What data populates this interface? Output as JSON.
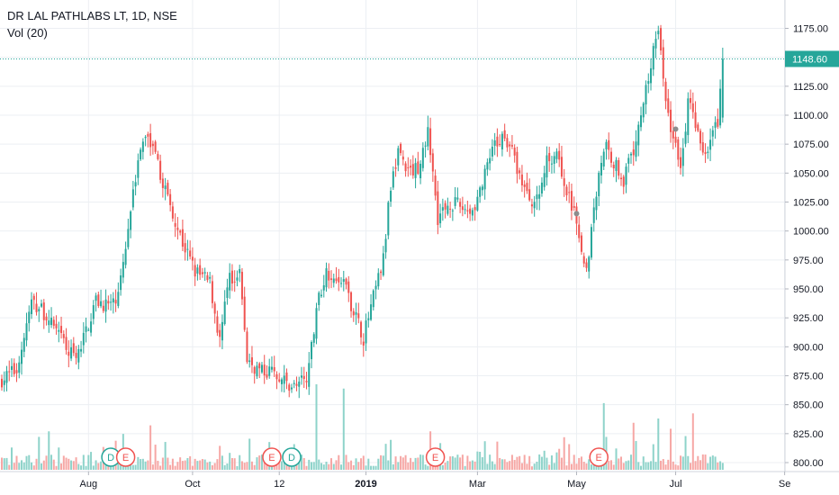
{
  "header": {
    "title": "DR LAL PATHLABS LT, 1D, NSE",
    "volume_label": "Vol (20)"
  },
  "colors": {
    "up": "#26a69a",
    "down": "#ef5350",
    "vol_up": "#8ed3ca",
    "vol_down": "#f6a7a5",
    "grid": "#eceff3",
    "text": "#131722",
    "price_line": "#26a69a",
    "price_label_bg": "#26a69a"
  },
  "chart_data": {
    "type": "candlestick",
    "symbol": "DR LAL PATHLABS LT",
    "interval": "1D",
    "exchange": "NSE",
    "ylim": [
      795,
      1185
    ],
    "y_ticks": [
      800,
      825,
      850,
      875,
      900,
      925,
      950,
      975,
      1000,
      1025,
      1050,
      1075,
      1100,
      1125,
      1150,
      1175
    ],
    "y_tick_labels": [
      "800.00",
      "825.00",
      "850.00",
      "875.00",
      "900.00",
      "925.00",
      "950.00",
      "975.00",
      "1000.00",
      "1025.00",
      "1050.00",
      "1075.00",
      "1100.00",
      "1125.00",
      "1150.00",
      "1175.00"
    ],
    "x_tick_labels": [
      "Aug",
      "Oct",
      "12",
      "2019",
      "Mar",
      "May",
      "Jul",
      "Se"
    ],
    "x_tick_days": [
      35,
      77,
      112,
      147,
      192,
      232,
      272,
      316
    ],
    "last_price": 1148.6,
    "last_price_label": "1148.60",
    "close_anchors": [
      {
        "d": 0,
        "p": 872
      },
      {
        "d": 6,
        "p": 880
      },
      {
        "d": 12,
        "p": 938
      },
      {
        "d": 17,
        "p": 930
      },
      {
        "d": 24,
        "p": 905
      },
      {
        "d": 30,
        "p": 888
      },
      {
        "d": 38,
        "p": 940
      },
      {
        "d": 45,
        "p": 935
      },
      {
        "d": 49,
        "p": 968
      },
      {
        "d": 53,
        "p": 1040
      },
      {
        "d": 58,
        "p": 1085
      },
      {
        "d": 62,
        "p": 1062
      },
      {
        "d": 67,
        "p": 1030
      },
      {
        "d": 73,
        "p": 990
      },
      {
        "d": 78,
        "p": 965
      },
      {
        "d": 84,
        "p": 955
      },
      {
        "d": 88,
        "p": 905
      },
      {
        "d": 92,
        "p": 960
      },
      {
        "d": 96,
        "p": 965
      },
      {
        "d": 99,
        "p": 888
      },
      {
        "d": 105,
        "p": 878
      },
      {
        "d": 110,
        "p": 880
      },
      {
        "d": 115,
        "p": 868
      },
      {
        "d": 120,
        "p": 865
      },
      {
        "d": 124,
        "p": 880
      },
      {
        "d": 127,
        "p": 935
      },
      {
        "d": 131,
        "p": 965
      },
      {
        "d": 137,
        "p": 960
      },
      {
        "d": 142,
        "p": 932
      },
      {
        "d": 146,
        "p": 908
      },
      {
        "d": 150,
        "p": 942
      },
      {
        "d": 154,
        "p": 975
      },
      {
        "d": 157,
        "p": 1040
      },
      {
        "d": 160,
        "p": 1070
      },
      {
        "d": 164,
        "p": 1050
      },
      {
        "d": 168,
        "p": 1055
      },
      {
        "d": 172,
        "p": 1085
      },
      {
        "d": 176,
        "p": 1012
      },
      {
        "d": 181,
        "p": 1025
      },
      {
        "d": 186,
        "p": 1020
      },
      {
        "d": 190,
        "p": 1018
      },
      {
        "d": 194,
        "p": 1040
      },
      {
        "d": 198,
        "p": 1068
      },
      {
        "d": 203,
        "p": 1085
      },
      {
        "d": 208,
        "p": 1055
      },
      {
        "d": 212,
        "p": 1030
      },
      {
        "d": 216,
        "p": 1025
      },
      {
        "d": 220,
        "p": 1060
      },
      {
        "d": 224,
        "p": 1070
      },
      {
        "d": 227,
        "p": 1040
      },
      {
        "d": 230,
        "p": 1020
      },
      {
        "d": 233,
        "p": 1000
      },
      {
        "d": 236,
        "p": 965
      },
      {
        "d": 239,
        "p": 1020
      },
      {
        "d": 243,
        "p": 1075
      },
      {
        "d": 247,
        "p": 1060
      },
      {
        "d": 251,
        "p": 1045
      },
      {
        "d": 255,
        "p": 1070
      },
      {
        "d": 259,
        "p": 1110
      },
      {
        "d": 262,
        "p": 1145
      },
      {
        "d": 265,
        "p": 1170
      },
      {
        "d": 268,
        "p": 1110
      },
      {
        "d": 271,
        "p": 1080
      },
      {
        "d": 274,
        "p": 1055
      },
      {
        "d": 277,
        "p": 1110
      },
      {
        "d": 280,
        "p": 1095
      },
      {
        "d": 283,
        "p": 1065
      },
      {
        "d": 286,
        "p": 1080
      },
      {
        "d": 289,
        "p": 1095
      },
      {
        "d": 291,
        "p": 1148.6
      }
    ],
    "volume_spikes": [
      {
        "d": 19,
        "v": 0.45
      },
      {
        "d": 49,
        "v": 0.42
      },
      {
        "d": 60,
        "v": 0.52
      },
      {
        "d": 88,
        "v": 0.28
      },
      {
        "d": 118,
        "v": 0.3
      },
      {
        "d": 127,
        "v": 1.0
      },
      {
        "d": 138,
        "v": 0.95
      },
      {
        "d": 157,
        "v": 0.35
      },
      {
        "d": 173,
        "v": 0.45
      },
      {
        "d": 200,
        "v": 0.33
      },
      {
        "d": 229,
        "v": 0.3
      },
      {
        "d": 243,
        "v": 0.78
      },
      {
        "d": 255,
        "v": 0.55
      },
      {
        "d": 265,
        "v": 0.6
      },
      {
        "d": 270,
        "v": 0.48
      },
      {
        "d": 279,
        "v": 0.66
      },
      {
        "d": 291,
        "v": 0.08
      }
    ],
    "events": [
      {
        "d": 44,
        "letter": "D"
      },
      {
        "d": 50,
        "letter": "E"
      },
      {
        "d": 109,
        "letter": "E"
      },
      {
        "d": 117,
        "letter": "D"
      },
      {
        "d": 175,
        "letter": "E"
      },
      {
        "d": 241,
        "letter": "E"
      }
    ]
  }
}
